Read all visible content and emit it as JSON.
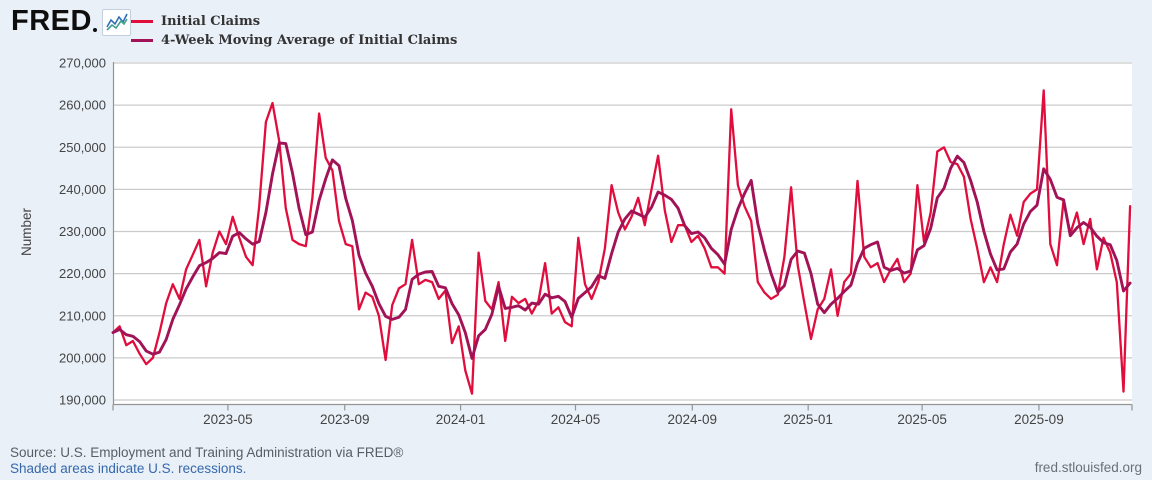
{
  "header": {
    "logo_text": "FRED"
  },
  "footer": {
    "source_text": "Source: U.S. Employment and Training Administration via FRED®",
    "recession_note": "Shaded areas indicate U.S. recessions.",
    "site_url": "fred.stlouisfed.org"
  },
  "chart_data": {
    "type": "line",
    "title": "",
    "xlabel": "",
    "ylabel": "Number",
    "grid": true,
    "legend_position": "top-left",
    "ylim": [
      190000,
      270000
    ],
    "y_ticks": [
      270000,
      260000,
      250000,
      240000,
      230000,
      220000,
      210000,
      200000,
      190000
    ],
    "y_tick_labels": [
      "270,000",
      "260,000",
      "250,000",
      "240,000",
      "230,000",
      "220,000",
      "210,000",
      "200,000",
      "190,000"
    ],
    "frequency": "weekly",
    "start_week_ending": "2022-12-31",
    "end_week_ending": "2025-12-06",
    "x_domain": [
      "2022-12-31",
      "2025-12-08"
    ],
    "x_ticks": [
      {
        "label": "2023-05",
        "date": "2023-05-01"
      },
      {
        "label": "2023-09",
        "date": "2023-09-01"
      },
      {
        "label": "2024-01",
        "date": "2024-01-01"
      },
      {
        "label": "2024-05",
        "date": "2024-05-01"
      },
      {
        "label": "2024-09",
        "date": "2024-09-01"
      },
      {
        "label": "2025-01",
        "date": "2025-01-01"
      },
      {
        "label": "2025-05",
        "date": "2025-05-01"
      },
      {
        "label": "2025-09",
        "date": "2025-09-01"
      }
    ],
    "series": [
      {
        "name": "Initial Claims",
        "color": "#e00d3d",
        "width": 2.3,
        "values": [
          206000,
          207500,
          203000,
          204000,
          201000,
          198500,
          200000,
          206000,
          213000,
          217500,
          214000,
          221000,
          224500,
          228000,
          217000,
          225000,
          230000,
          227000,
          233500,
          228500,
          224000,
          222000,
          236000,
          256000,
          260500,
          251500,
          235500,
          228000,
          227000,
          226500,
          238000,
          258000,
          247500,
          244500,
          232500,
          227000,
          226500,
          211500,
          215500,
          214500,
          210000,
          199500,
          212500,
          216500,
          217500,
          228000,
          217500,
          218500,
          218000,
          214000,
          216000,
          203500,
          207500,
          197000,
          191500,
          225000,
          213500,
          211500,
          218000,
          204000,
          214500,
          213000,
          214000,
          210500,
          213500,
          222500,
          210500,
          212000,
          208500,
          207500,
          228500,
          217500,
          214000,
          218000,
          226000,
          241000,
          234500,
          230500,
          233500,
          238000,
          231500,
          240000,
          248000,
          235000,
          227500,
          231500,
          231500,
          227500,
          229000,
          226000,
          221500,
          221500,
          220000,
          259000,
          241000,
          236000,
          232500,
          218000,
          215500,
          214000,
          215000,
          224000,
          240500,
          222000,
          213000,
          204500,
          211500,
          214000,
          221000,
          210000,
          218000,
          220000,
          242000,
          224000,
          221500,
          222500,
          218000,
          221000,
          223500,
          218000,
          220000,
          241000,
          227500,
          234500,
          249000,
          250000,
          246500,
          246000,
          243000,
          233000,
          226000,
          218000,
          221500,
          218000,
          227000,
          234000,
          229000,
          237000,
          239000,
          240000,
          263500,
          227000,
          222000,
          237500,
          229500,
          234500,
          227000,
          233000,
          221000,
          228500,
          225000,
          218000,
          192000,
          236000
        ]
      },
      {
        "name": "4-Week Moving Average of Initial Claims",
        "color": "#a21256",
        "width": 2.9,
        "values": [
          206000,
          206750,
          205500,
          205125,
          203875,
          201625,
          200875,
          201375,
          204375,
          209125,
          212625,
          216375,
          219250,
          221875,
          222625,
          223625,
          225000,
          224750,
          228875,
          229750,
          228250,
          227000,
          227625,
          234500,
          243625,
          251000,
          250875,
          243875,
          235500,
          229250,
          229875,
          237375,
          242500,
          247000,
          245625,
          237875,
          232625,
          224375,
          220125,
          217000,
          212875,
          209875,
          209125,
          209625,
          211500,
          218625,
          219875,
          220375,
          220500,
          217000,
          216625,
          212875,
          210250,
          206000,
          199875,
          205250,
          206750,
          210375,
          217000,
          211750,
          212000,
          212375,
          211375,
          213000,
          212750,
          215125,
          214250,
          214625,
          213375,
          209625,
          214125,
          215500,
          216875,
          219500,
          218875,
          224750,
          229875,
          233000,
          234875,
          234125,
          233375,
          235750,
          239375,
          238625,
          237625,
          235500,
          231375,
          229500,
          229875,
          228500,
          226000,
          224500,
          222250,
          230500,
          235375,
          239000,
          242125,
          231875,
          225500,
          220000,
          215625,
          217125,
          223375,
          225375,
          224875,
          220000,
          212750,
          210750,
          212750,
          214125,
          215750,
          217250,
          222500,
          226000,
          226875,
          227500,
          221500,
          220750,
          221250,
          220125,
          220625,
          225625,
          226625,
          230750,
          238000,
          240250,
          245000,
          247875,
          246375,
          242125,
          237000,
          230000,
          224625,
          220875,
          221125,
          225125,
          227000,
          231750,
          234750,
          236250,
          244875,
          242375,
          238125,
          237500,
          229000,
          230875,
          232125,
          231000,
          228875,
          227375,
          226875,
          223125,
          215875,
          217750
        ]
      }
    ]
  }
}
